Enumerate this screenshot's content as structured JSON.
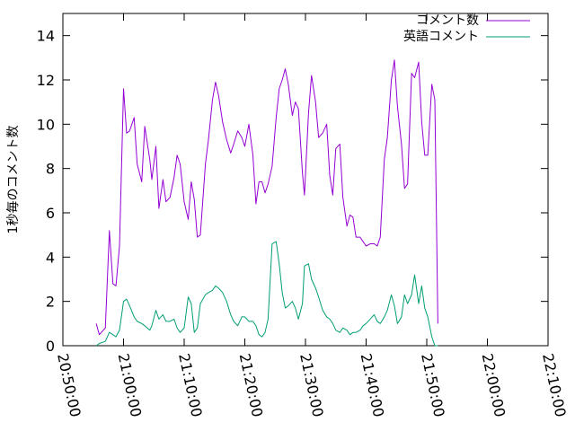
{
  "chart_data": {
    "type": "line",
    "title": "",
    "xlabel": "",
    "ylabel": "1秒毎のコメント数",
    "x_type": "time",
    "xlim": [
      "20:50:00",
      "22:10:00"
    ],
    "ylim": [
      0,
      15
    ],
    "x_ticks": [
      "20:50:00",
      "21:00:00",
      "21:10:00",
      "21:20:00",
      "21:30:00",
      "21:40:00",
      "21:50:00",
      "22:00:00",
      "22:10:00"
    ],
    "y_ticks": [
      0,
      2,
      4,
      6,
      8,
      10,
      12,
      14
    ],
    "grid": false,
    "legend": "top-right",
    "series": [
      {
        "name": "コメント数",
        "color": "#9400d3",
        "points": [
          [
            "20:55:30",
            1.0
          ],
          [
            "20:56:00",
            0.5
          ],
          [
            "20:57:00",
            0.8
          ],
          [
            "20:57:40",
            5.2
          ],
          [
            "20:58:15",
            2.8
          ],
          [
            "20:58:45",
            2.7
          ],
          [
            "20:59:20",
            4.5
          ],
          [
            "21:00:00",
            11.6
          ],
          [
            "21:00:30",
            9.6
          ],
          [
            "21:01:00",
            9.7
          ],
          [
            "21:01:45",
            10.3
          ],
          [
            "21:02:15",
            8.2
          ],
          [
            "21:03:00",
            7.4
          ],
          [
            "21:03:30",
            9.9
          ],
          [
            "21:04:20",
            8.4
          ],
          [
            "21:04:40",
            7.5
          ],
          [
            "21:05:20",
            9.0
          ],
          [
            "21:05:50",
            6.2
          ],
          [
            "21:06:30",
            7.5
          ],
          [
            "21:07:00",
            6.5
          ],
          [
            "21:07:40",
            6.7
          ],
          [
            "21:08:20",
            7.6
          ],
          [
            "21:08:50",
            8.6
          ],
          [
            "21:09:20",
            8.2
          ],
          [
            "21:10:00",
            6.5
          ],
          [
            "21:10:40",
            5.7
          ],
          [
            "21:11:10",
            7.4
          ],
          [
            "21:11:40",
            6.6
          ],
          [
            "21:12:10",
            4.9
          ],
          [
            "21:12:40",
            5.0
          ],
          [
            "21:13:30",
            8.2
          ],
          [
            "21:14:00",
            9.3
          ],
          [
            "21:14:40",
            11.1
          ],
          [
            "21:15:10",
            11.9
          ],
          [
            "21:15:40",
            11.3
          ],
          [
            "21:16:20",
            10.1
          ],
          [
            "21:17:00",
            9.3
          ],
          [
            "21:17:40",
            8.7
          ],
          [
            "21:18:10",
            9.1
          ],
          [
            "21:18:50",
            9.7
          ],
          [
            "21:19:30",
            9.4
          ],
          [
            "21:20:00",
            9.0
          ],
          [
            "21:20:40",
            10.0
          ],
          [
            "21:21:20",
            8.6
          ],
          [
            "21:21:50",
            6.4
          ],
          [
            "21:22:20",
            7.4
          ],
          [
            "21:22:50",
            7.4
          ],
          [
            "21:23:20",
            6.9
          ],
          [
            "21:23:50",
            7.3
          ],
          [
            "21:24:30",
            8.1
          ],
          [
            "21:25:10",
            10.3
          ],
          [
            "21:25:40",
            11.6
          ],
          [
            "21:26:10",
            12.0
          ],
          [
            "21:26:40",
            12.5
          ],
          [
            "21:27:10",
            11.8
          ],
          [
            "21:27:50",
            10.4
          ],
          [
            "21:28:20",
            11.0
          ],
          [
            "21:28:50",
            10.7
          ],
          [
            "21:29:30",
            7.8
          ],
          [
            "21:29:50",
            6.8
          ],
          [
            "21:30:30",
            10.5
          ],
          [
            "21:31:00",
            12.2
          ],
          [
            "21:31:40",
            11.0
          ],
          [
            "21:32:10",
            9.4
          ],
          [
            "21:32:50",
            9.6
          ],
          [
            "21:33:30",
            10.0
          ],
          [
            "21:34:00",
            7.7
          ],
          [
            "21:34:30",
            6.8
          ],
          [
            "21:35:00",
            8.9
          ],
          [
            "21:35:40",
            9.1
          ],
          [
            "21:36:10",
            6.7
          ],
          [
            "21:36:50",
            5.4
          ],
          [
            "21:37:20",
            5.9
          ],
          [
            "21:37:50",
            5.8
          ],
          [
            "21:38:20",
            4.9
          ],
          [
            "21:39:00",
            4.9
          ],
          [
            "21:39:30",
            4.7
          ],
          [
            "21:40:00",
            4.5
          ],
          [
            "21:40:40",
            4.6
          ],
          [
            "21:41:20",
            4.6
          ],
          [
            "21:41:50",
            4.5
          ],
          [
            "21:42:20",
            4.9
          ],
          [
            "21:43:00",
            8.4
          ],
          [
            "21:43:30",
            9.4
          ],
          [
            "21:44:10",
            12.0
          ],
          [
            "21:44:40",
            12.9
          ],
          [
            "21:45:10",
            10.8
          ],
          [
            "21:45:50",
            9.1
          ],
          [
            "21:46:20",
            7.1
          ],
          [
            "21:46:50",
            7.3
          ],
          [
            "21:47:30",
            12.3
          ],
          [
            "21:48:00",
            12.1
          ],
          [
            "21:48:40",
            12.8
          ],
          [
            "21:49:10",
            10.1
          ],
          [
            "21:49:40",
            8.6
          ],
          [
            "21:50:10",
            8.6
          ],
          [
            "21:50:50",
            11.8
          ],
          [
            "21:51:20",
            11.1
          ],
          [
            "21:51:50",
            1.0
          ]
        ]
      },
      {
        "name": "英語コメント",
        "color": "#009e73",
        "points": [
          [
            "20:55:30",
            0.0
          ],
          [
            "20:56:00",
            0.1
          ],
          [
            "20:57:00",
            0.2
          ],
          [
            "20:57:40",
            0.6
          ],
          [
            "20:58:15",
            0.5
          ],
          [
            "20:58:45",
            0.4
          ],
          [
            "20:59:20",
            0.7
          ],
          [
            "21:00:00",
            2.0
          ],
          [
            "21:00:30",
            2.1
          ],
          [
            "21:01:00",
            1.8
          ],
          [
            "21:01:45",
            1.3
          ],
          [
            "21:02:15",
            1.1
          ],
          [
            "21:03:00",
            1.0
          ],
          [
            "21:03:30",
            0.9
          ],
          [
            "21:04:20",
            0.7
          ],
          [
            "21:04:40",
            0.9
          ],
          [
            "21:05:20",
            1.6
          ],
          [
            "21:05:50",
            1.2
          ],
          [
            "21:06:30",
            1.4
          ],
          [
            "21:07:00",
            1.1
          ],
          [
            "21:07:40",
            1.1
          ],
          [
            "21:08:20",
            1.2
          ],
          [
            "21:08:50",
            0.8
          ],
          [
            "21:09:20",
            0.6
          ],
          [
            "21:10:00",
            0.8
          ],
          [
            "21:10:40",
            2.2
          ],
          [
            "21:11:10",
            1.9
          ],
          [
            "21:11:40",
            0.6
          ],
          [
            "21:12:10",
            0.8
          ],
          [
            "21:12:40",
            1.9
          ],
          [
            "21:13:30",
            2.3
          ],
          [
            "21:14:00",
            2.4
          ],
          [
            "21:14:40",
            2.5
          ],
          [
            "21:15:10",
            2.7
          ],
          [
            "21:15:40",
            2.6
          ],
          [
            "21:16:20",
            2.4
          ],
          [
            "21:17:00",
            2.0
          ],
          [
            "21:17:40",
            1.4
          ],
          [
            "21:18:10",
            1.1
          ],
          [
            "21:18:50",
            0.9
          ],
          [
            "21:19:30",
            1.3
          ],
          [
            "21:20:00",
            1.3
          ],
          [
            "21:20:40",
            1.1
          ],
          [
            "21:21:20",
            1.1
          ],
          [
            "21:21:50",
            0.9
          ],
          [
            "21:22:20",
            0.5
          ],
          [
            "21:22:50",
            0.4
          ],
          [
            "21:23:20",
            0.6
          ],
          [
            "21:23:50",
            1.2
          ],
          [
            "21:24:30",
            4.6
          ],
          [
            "21:25:10",
            4.7
          ],
          [
            "21:25:40",
            3.7
          ],
          [
            "21:26:10",
            2.4
          ],
          [
            "21:26:40",
            1.7
          ],
          [
            "21:27:10",
            1.8
          ],
          [
            "21:27:50",
            2.0
          ],
          [
            "21:28:20",
            1.7
          ],
          [
            "21:28:50",
            1.2
          ],
          [
            "21:29:30",
            1.9
          ],
          [
            "21:29:50",
            3.6
          ],
          [
            "21:30:30",
            3.7
          ],
          [
            "21:31:00",
            3.0
          ],
          [
            "21:31:40",
            2.6
          ],
          [
            "21:32:10",
            2.2
          ],
          [
            "21:32:50",
            1.6
          ],
          [
            "21:33:30",
            1.3
          ],
          [
            "21:34:00",
            1.2
          ],
          [
            "21:34:30",
            1.0
          ],
          [
            "21:35:00",
            0.7
          ],
          [
            "21:35:40",
            0.6
          ],
          [
            "21:36:10",
            0.8
          ],
          [
            "21:36:50",
            0.7
          ],
          [
            "21:37:20",
            0.5
          ],
          [
            "21:37:50",
            0.6
          ],
          [
            "21:38:20",
            0.6
          ],
          [
            "21:39:00",
            0.7
          ],
          [
            "21:39:30",
            0.9
          ],
          [
            "21:40:00",
            1.0
          ],
          [
            "21:40:40",
            1.2
          ],
          [
            "21:41:20",
            1.4
          ],
          [
            "21:41:50",
            1.1
          ],
          [
            "21:42:20",
            1.0
          ],
          [
            "21:43:00",
            1.3
          ],
          [
            "21:43:30",
            1.6
          ],
          [
            "21:44:10",
            2.3
          ],
          [
            "21:44:40",
            1.8
          ],
          [
            "21:45:10",
            1.0
          ],
          [
            "21:45:50",
            1.3
          ],
          [
            "21:46:20",
            2.3
          ],
          [
            "21:46:50",
            1.9
          ],
          [
            "21:47:30",
            2.3
          ],
          [
            "21:48:00",
            3.2
          ],
          [
            "21:48:40",
            1.9
          ],
          [
            "21:49:10",
            2.7
          ],
          [
            "21:49:40",
            1.7
          ],
          [
            "21:50:10",
            1.3
          ],
          [
            "21:50:50",
            0.4
          ],
          [
            "21:51:20",
            0.0
          ],
          [
            "21:51:50",
            0.0
          ]
        ]
      }
    ]
  }
}
